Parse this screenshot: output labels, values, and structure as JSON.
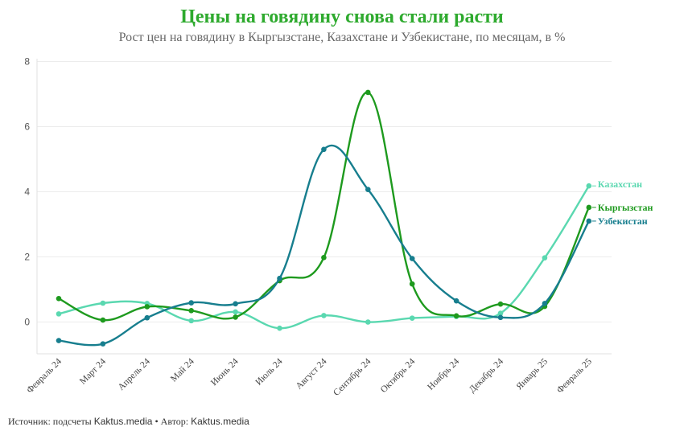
{
  "title": "Цены на говядину снова стали расти",
  "subtitle": "Рост цен на говядину в Кыргызстане, Казахстане и Узбекистане, по месяцам, в %",
  "footer": {
    "source_prefix": "Источник: подсчеты ",
    "source": "Kaktus.media",
    "separator": " • Автор: ",
    "author": "Kaktus.media"
  },
  "colors": {
    "kyrgyzstan": "#1e9a1e",
    "kazakhstan": "#5ad8b0",
    "uzbekistan": "#177e8e",
    "title": "#2eaa2e"
  },
  "chart_data": {
    "type": "line",
    "title": "Цены на говядину снова стали расти",
    "subtitle": "Рост цен на говядину в Кыргызстане, Казахстане и Узбекистане, по месяцам, в %",
    "xlabel": "",
    "ylabel": "",
    "ylim": [
      -1,
      8
    ],
    "yticks": [
      0,
      2,
      4,
      6,
      8
    ],
    "grid": true,
    "legend": "direct labels at line ends",
    "categories": [
      "Февраль 24",
      "Март 24",
      "Апрель 24",
      "Май 24",
      "Июнь 24",
      "Июль 24",
      "Август 24",
      "Сентябрь 24",
      "Октябрь 24",
      "Ноябрь 24",
      "Декабрь 24",
      "Январь 25",
      "Февраль 25"
    ],
    "series": [
      {
        "name": "Казахстан",
        "color": "#5ad8b0",
        "values": [
          0.25,
          0.58,
          0.57,
          0.04,
          0.31,
          -0.19,
          0.2,
          0.0,
          0.12,
          0.17,
          0.27,
          1.97,
          4.18
        ]
      },
      {
        "name": "Кыргызстан",
        "color": "#1e9a1e",
        "values": [
          0.72,
          0.06,
          0.47,
          0.35,
          0.15,
          1.27,
          1.98,
          7.05,
          1.17,
          0.19,
          0.55,
          0.48,
          3.52
        ]
      },
      {
        "name": "Узбекистан",
        "color": "#177e8e",
        "values": [
          -0.57,
          -0.67,
          0.13,
          0.59,
          0.56,
          1.34,
          5.3,
          4.07,
          1.95,
          0.65,
          0.14,
          0.57,
          3.1
        ]
      }
    ]
  }
}
